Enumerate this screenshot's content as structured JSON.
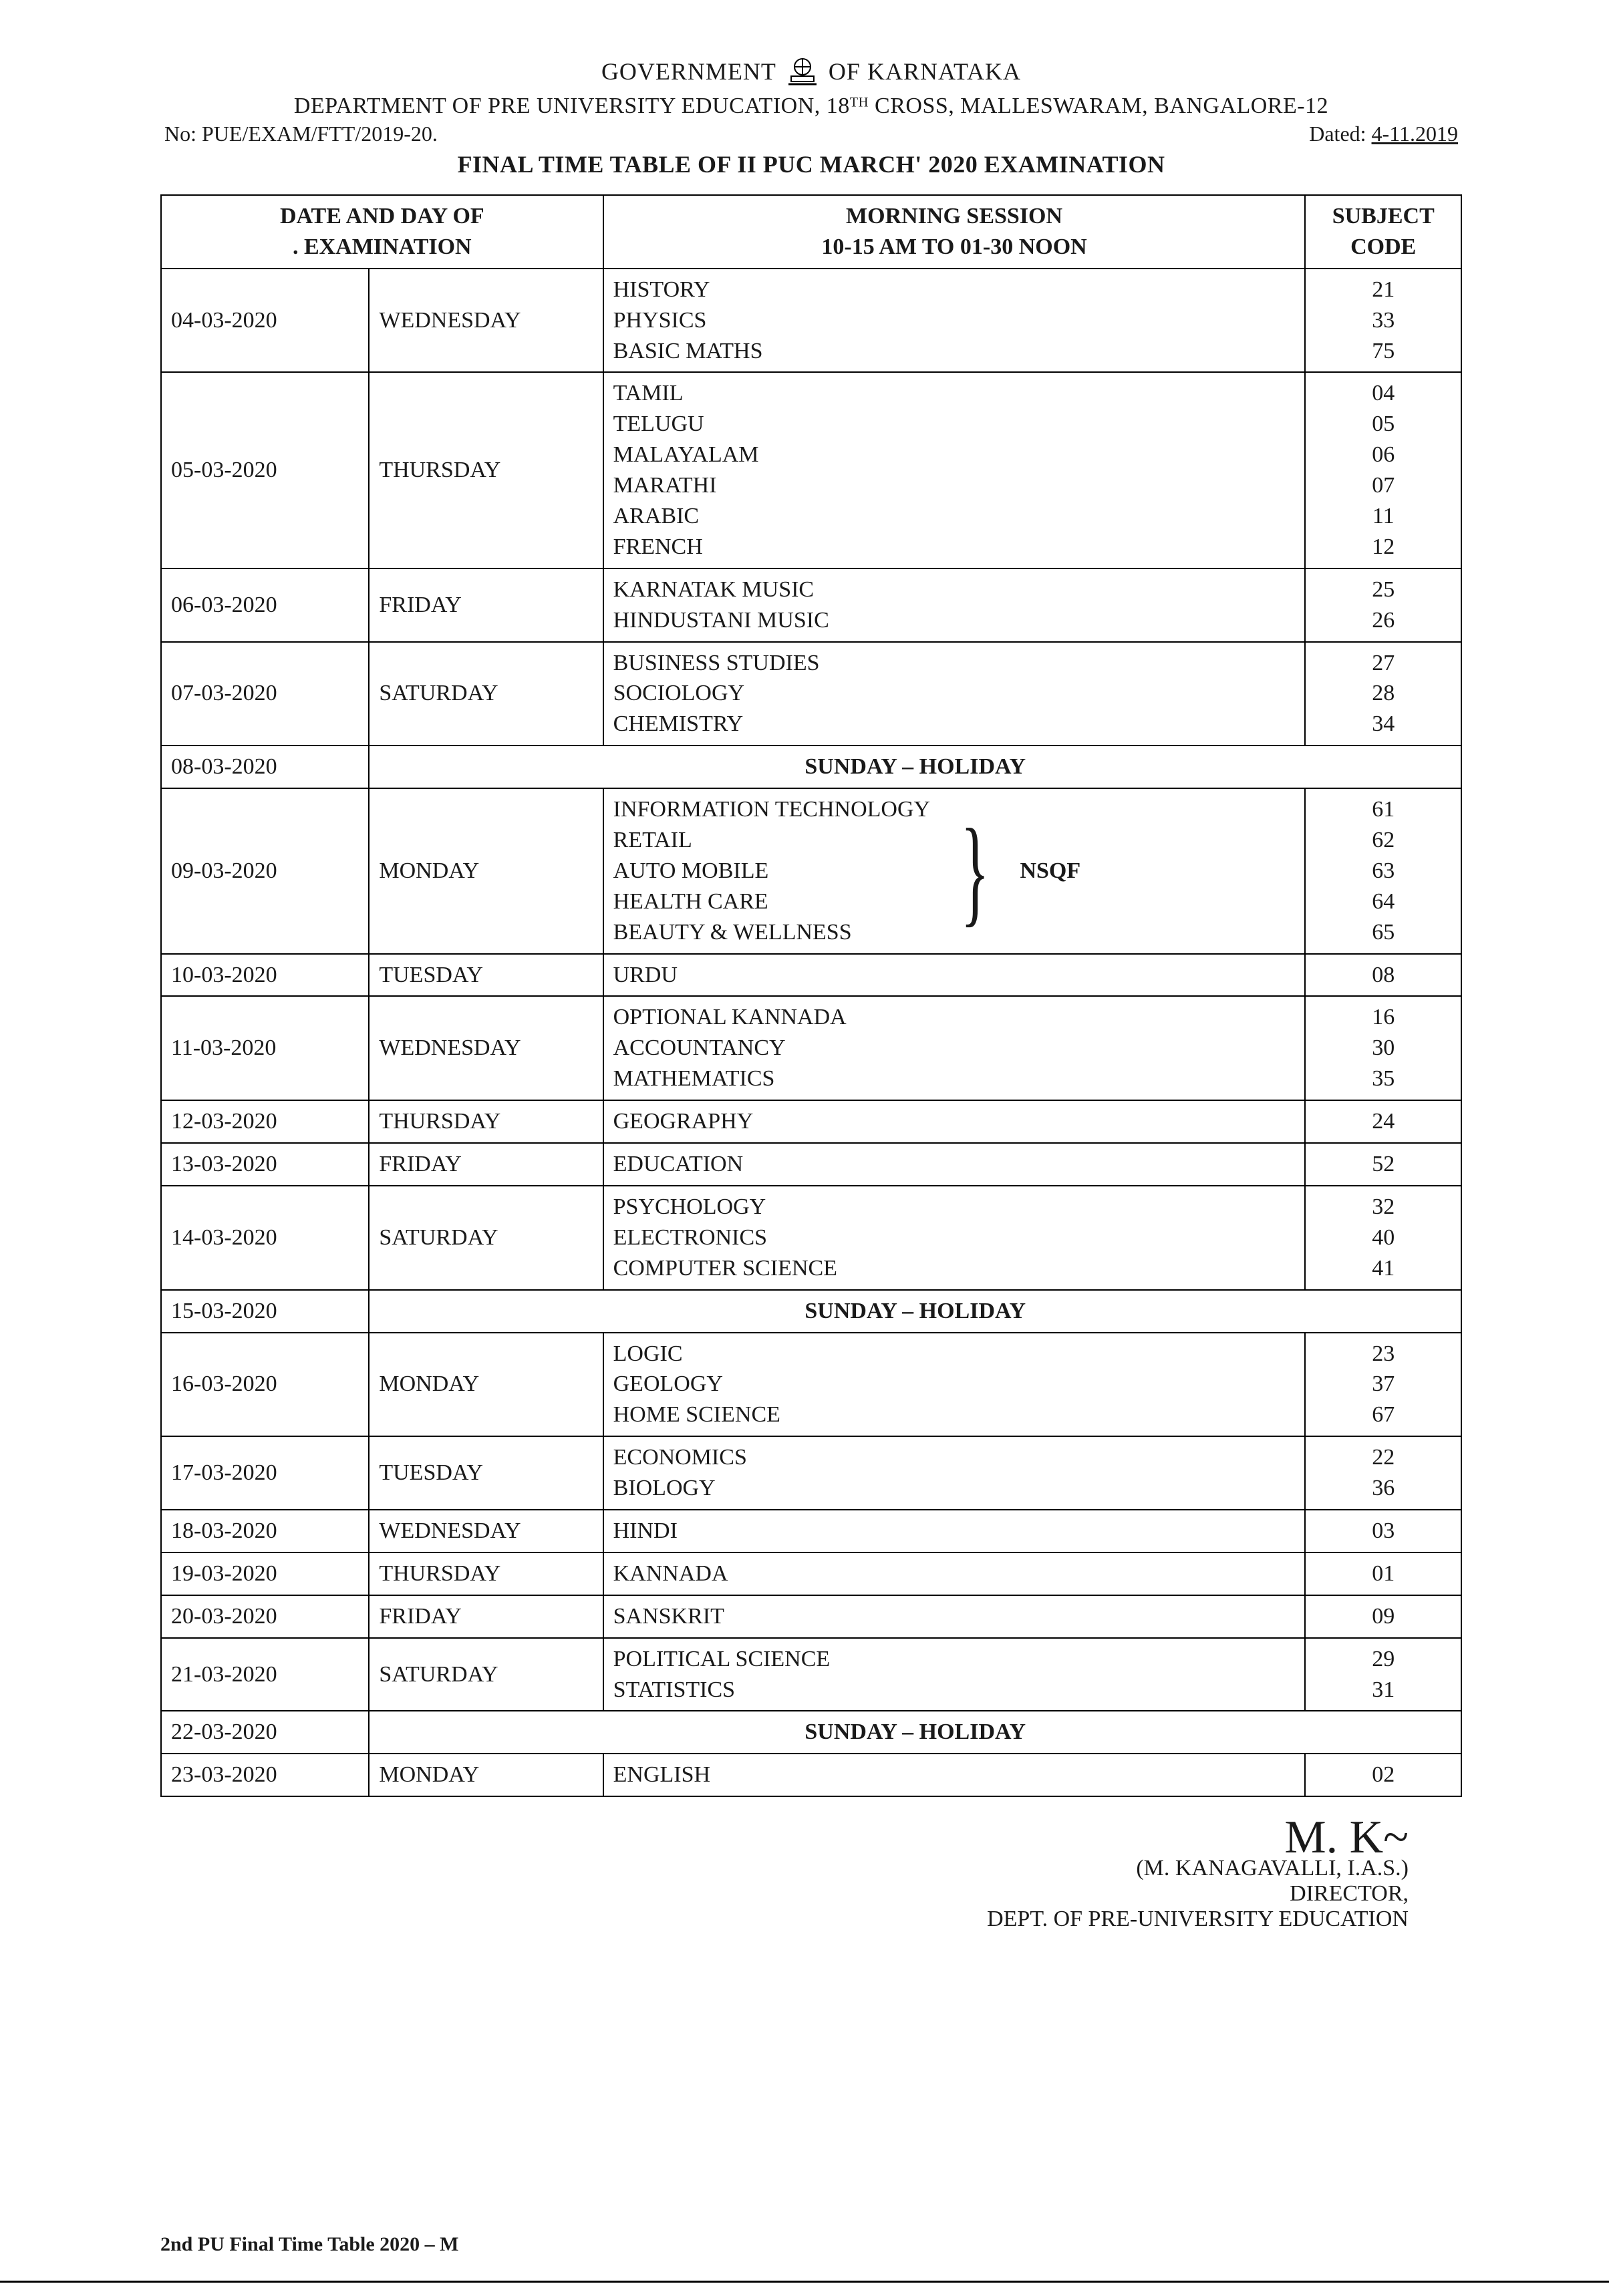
{
  "header": {
    "gov_left": "GOVERNMENT",
    "gov_right": "OF KARNATAKA",
    "dept": "DEPARTMENT OF PRE UNIVERSITY EDUCATION, 18ᵀᴴ CROSS, MALLESWARAM, BANGALORE-12",
    "ref": "No: PUE/EXAM/FTT/2019-20.",
    "dated_label": "Dated:",
    "dated_value": "4-11.2019",
    "title": "FINAL TIME TABLE OF II PUC MARCH' 2020 EXAMINATION"
  },
  "columns": {
    "datehdr_l1": "DATE AND DAY OF",
    "datehdr_l2": ". EXAMINATION",
    "session_l1": "MORNING SESSION",
    "session_l2": "10-15 AM TO 01-30 NOON",
    "code_l1": "SUBJECT",
    "code_l2": "CODE"
  },
  "rows": [
    {
      "date": "04-03-2020",
      "day": "WEDNESDAY",
      "subjects": [
        "HISTORY",
        "PHYSICS",
        "BASIC MATHS"
      ],
      "codes": [
        "21",
        "33",
        "75"
      ]
    },
    {
      "date": "05-03-2020",
      "day": "THURSDAY",
      "subjects": [
        "TAMIL",
        "TELUGU",
        "MALAYALAM",
        "MARATHI",
        "ARABIC",
        "FRENCH"
      ],
      "codes": [
        "04",
        "05",
        "06",
        "07",
        "11",
        "12"
      ]
    },
    {
      "date": "06-03-2020",
      "day": "FRIDAY",
      "subjects": [
        "KARNATAK MUSIC",
        "HINDUSTANI MUSIC"
      ],
      "codes": [
        "25",
        "26"
      ]
    },
    {
      "date": "07-03-2020",
      "day": "SATURDAY",
      "subjects": [
        "BUSINESS STUDIES",
        "SOCIOLOGY",
        "CHEMISTRY"
      ],
      "codes": [
        "27",
        "28",
        "34"
      ]
    },
    {
      "date": "08-03-2020",
      "holiday": "SUNDAY – HOLIDAY"
    },
    {
      "date": "09-03-2020",
      "day": "MONDAY",
      "nsqf": "NSQF",
      "subjects": [
        "INFORMATION TECHNOLOGY",
        "RETAIL",
        "AUTO MOBILE",
        "HEALTH CARE",
        "BEAUTY & WELLNESS"
      ],
      "codes": [
        "61",
        "62",
        "63",
        "64",
        "65"
      ]
    },
    {
      "date": "10-03-2020",
      "day": "TUESDAY",
      "subjects": [
        "URDU"
      ],
      "codes": [
        "08"
      ]
    },
    {
      "date": "11-03-2020",
      "day": "WEDNESDAY",
      "subjects": [
        "OPTIONAL KANNADA",
        "ACCOUNTANCY",
        "MATHEMATICS"
      ],
      "codes": [
        "16",
        "30",
        "35"
      ]
    },
    {
      "date": "12-03-2020",
      "day": "THURSDAY",
      "subjects": [
        "GEOGRAPHY"
      ],
      "codes": [
        "24"
      ]
    },
    {
      "date": "13-03-2020",
      "day": "FRIDAY",
      "subjects": [
        "EDUCATION"
      ],
      "codes": [
        "52"
      ]
    },
    {
      "date": "14-03-2020",
      "day": "SATURDAY",
      "subjects": [
        "PSYCHOLOGY",
        "ELECTRONICS",
        "COMPUTER SCIENCE"
      ],
      "codes": [
        "32",
        "40",
        "41"
      ]
    },
    {
      "date": "15-03-2020",
      "holiday": "SUNDAY – HOLIDAY"
    },
    {
      "date": "16-03-2020",
      "day": "MONDAY",
      "subjects": [
        "LOGIC",
        "GEOLOGY",
        "HOME SCIENCE"
      ],
      "codes": [
        "23",
        "37",
        "67"
      ]
    },
    {
      "date": "17-03-2020",
      "day": "TUESDAY",
      "subjects": [
        "ECONOMICS",
        "BIOLOGY"
      ],
      "codes": [
        "22",
        "36"
      ]
    },
    {
      "date": "18-03-2020",
      "day": "WEDNESDAY",
      "subjects": [
        "HINDI"
      ],
      "codes": [
        "03"
      ]
    },
    {
      "date": "19-03-2020",
      "day": "THURSDAY",
      "subjects": [
        "KANNADA"
      ],
      "codes": [
        "01"
      ]
    },
    {
      "date": "20-03-2020",
      "day": "FRIDAY",
      "subjects": [
        "SANSKRIT"
      ],
      "codes": [
        "09"
      ]
    },
    {
      "date": "21-03-2020",
      "day": "SATURDAY",
      "subjects": [
        "POLITICAL SCIENCE",
        "STATISTICS"
      ],
      "codes": [
        "29",
        "31"
      ]
    },
    {
      "date": "22-03-2020",
      "holiday": "SUNDAY – HOLIDAY"
    },
    {
      "date": "23-03-2020",
      "day": "MONDAY",
      "subjects": [
        "ENGLISH"
      ],
      "codes": [
        "02"
      ]
    }
  ],
  "signature": {
    "name": "(M. KANAGAVALLI, I.A.S.)",
    "role": "DIRECTOR,",
    "org": "DEPT. OF PRE-UNIVERSITY EDUCATION"
  },
  "footer": "2nd PU Final Time Table 2020 – M"
}
